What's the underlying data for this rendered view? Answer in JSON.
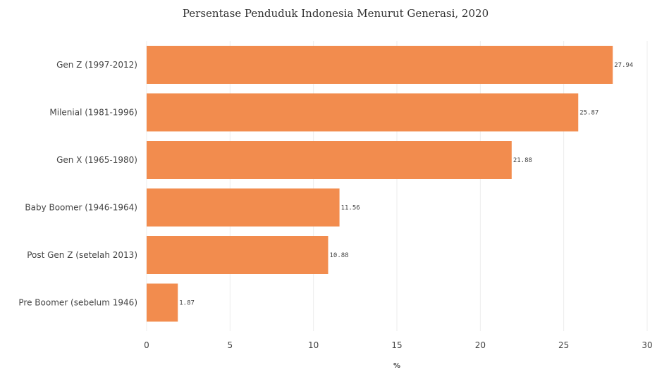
{
  "chart_data": {
    "type": "bar",
    "orientation": "horizontal",
    "title": "Persentase Penduduk Indonesia Menurut Generasi, 2020",
    "xlabel": "%",
    "ylabel": "",
    "categories": [
      "Gen Z (1997-2012)",
      "Milenial (1981-1996)",
      "Gen X (1965-1980)",
      "Baby Boomer (1946-1964)",
      "Post Gen Z (setelah 2013)",
      "Pre Boomer (sebelum 1946)"
    ],
    "values": [
      27.94,
      25.87,
      21.88,
      11.56,
      10.88,
      1.87
    ],
    "value_labels": [
      "27.94",
      "25.87",
      "21.88",
      "11.56",
      "10.88",
      "1.87"
    ],
    "xlim": [
      0,
      30
    ],
    "x_ticks": [
      0,
      5,
      10,
      15,
      20,
      25,
      30
    ],
    "x_tick_labels": [
      "0",
      "5",
      "10",
      "15",
      "20",
      "25",
      "30"
    ],
    "grid": true,
    "bar_color": "#F28C4E"
  }
}
